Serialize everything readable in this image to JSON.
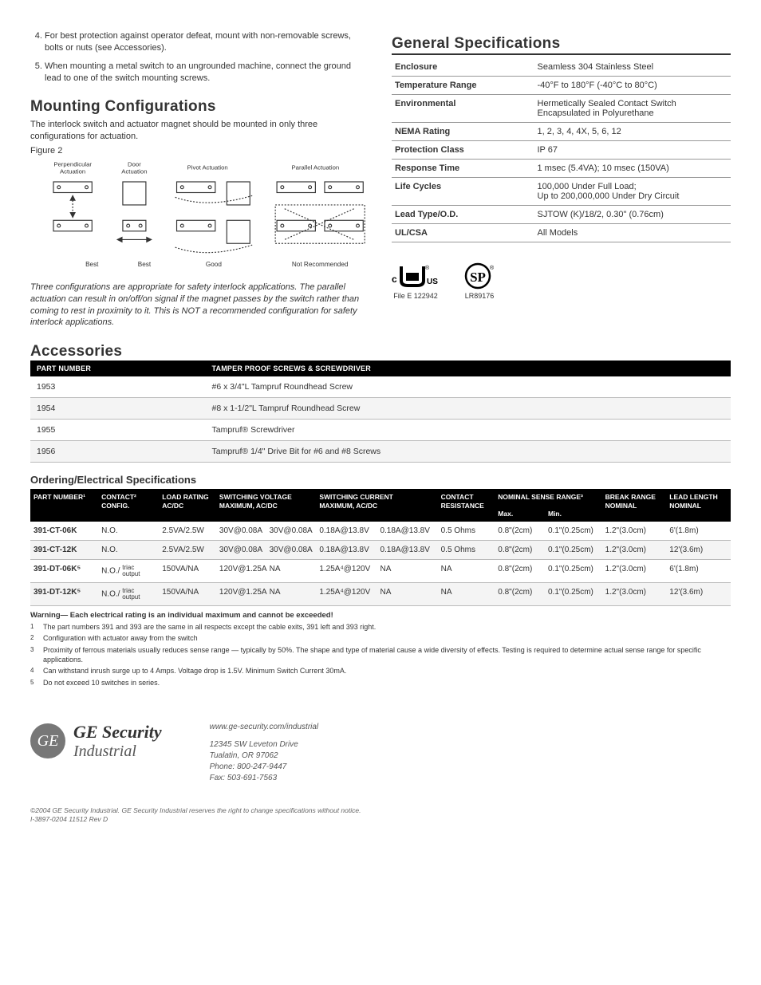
{
  "notes": {
    "n4": "For best protection against operator defeat, mount with non-removable screws, bolts or nuts (see Accessories).",
    "n5": "When mounting a metal switch to an ungrounded machine, connect the ground lead to one of the switch mounting screws."
  },
  "mounting": {
    "title": "Mounting Configurations",
    "intro": "The interlock switch and actuator magnet should be mounted in only three configurations for actuation.",
    "figcap": "Figure 2",
    "labels": {
      "perp": "Perpendicular\nActuation",
      "door": "Door\nActuation",
      "pivot": "Pivot Actuation",
      "parallel": "Parallel Actuation",
      "best": "Best",
      "good": "Good",
      "notrec": "Not Recommended"
    },
    "note": "Three configurations are appropriate for safety interlock applications. The parallel actuation can result in on/off/on signal if the magnet passes by the switch rather than coming to rest in proximity to it. This is NOT a recommended configuration for safety interlock applications."
  },
  "genspec": {
    "title": "General Specifications",
    "rows": [
      {
        "k": "Enclosure",
        "v": "Seamless 304 Stainless Steel"
      },
      {
        "k": "Temperature Range",
        "v": "-40°F to 180°F (-40°C to 80°C)"
      },
      {
        "k": "Environmental",
        "v": "Hermetically Sealed Contact Switch\nEncapsulated in Polyurethane"
      },
      {
        "k": "NEMA Rating",
        "v": "1, 2, 3, 4, 4X, 5, 6, 12"
      },
      {
        "k": "Protection Class",
        "v": "IP 67"
      },
      {
        "k": "Response Time",
        "v": "1 msec (5.4VA); 10 msec (150VA)"
      },
      {
        "k": "Life Cycles",
        "v": "100,000 Under Full Load;\nUp to 200,000,000 Under Dry Circuit"
      },
      {
        "k": "Lead Type/O.D.",
        "v": "SJTOW (K)/18/2, 0.30\" (0.76cm)"
      },
      {
        "k": "UL/CSA",
        "v": "All Models"
      }
    ],
    "cert1_caption": "File E 122942",
    "cert2_caption": "LR89176"
  },
  "accessories": {
    "title": "Accessories",
    "head_pn": "PART NUMBER",
    "head_desc": "TAMPER PROOF SCREWS & SCREWDRIVER",
    "rows": [
      {
        "pn": "1953",
        "desc": "#6 x 3/4\"L Tampruf Roundhead Screw"
      },
      {
        "pn": "1954",
        "desc": "#8 x 1-1/2\"L Tampruf Roundhead Screw"
      },
      {
        "pn": "1955",
        "desc": "Tampruf® Screwdriver"
      },
      {
        "pn": "1956",
        "desc": "Tampruf® 1/4\" Drive Bit for #6 and #8 Screws"
      }
    ]
  },
  "ordering": {
    "title": "Ordering/Electrical Specifications",
    "headers": {
      "pn": "PART NUMBER¹",
      "cfg": "CONTACT²\nCONFIG.",
      "load": "LOAD RATING\nAC/DC",
      "sv": "SWITCHING VOLTAGE\nMAXIMUM, AC/DC",
      "sc": "SWITCHING CURRENT\nMAXIMUM, AC/DC",
      "cr": "CONTACT\nRESISTANCE",
      "nsr": "NOMINAL SENSE RANGE³",
      "max": "Max.",
      "min": "Min.",
      "br": "BREAK RANGE\nNOMINAL",
      "ll": "LEAD LENGTH\nNOMINAL"
    },
    "rows": [
      {
        "pn": "391-CT-06K",
        "cfg": "N.O.",
        "load": "2.5VA/2.5W",
        "sv1": "30V@0.08A",
        "sv2": "30V@0.08A",
        "sc1": "0.18A@13.8V",
        "sc2": "0.18A@13.8V",
        "cr": "0.5 Ohms",
        "max": "0.8\"(2cm)",
        "min": "0.1\"(0.25cm)",
        "br": "1.2\"(3.0cm)",
        "ll": "6'(1.8m)"
      },
      {
        "pn": "391-CT-12K",
        "cfg": "N.O.",
        "load": "2.5VA/2.5W",
        "sv1": "30V@0.08A",
        "sv2": "30V@0.08A",
        "sc1": "0.18A@13.8V",
        "sc2": "0.18A@13.8V",
        "cr": "0.5 Ohms",
        "max": "0.8\"(2cm)",
        "min": "0.1\"(0.25cm)",
        "br": "1.2\"(3.0cm)",
        "ll": "12'(3.6m)"
      },
      {
        "pn": "391-DT-06K⁵",
        "cfg": "N.O./",
        "cfg2": "triac\noutput",
        "load": "150VA/NA",
        "sv1": "120V@1.25A",
        "sv2": "NA",
        "sc1": "1.25A⁴@120V",
        "sc2": "NA",
        "cr": "NA",
        "max": "0.8\"(2cm)",
        "min": "0.1\"(0.25cm)",
        "br": "1.2\"(3.0cm)",
        "ll": "6'(1.8m)"
      },
      {
        "pn": "391-DT-12K⁵",
        "cfg": "N.O./",
        "cfg2": "triac\noutput",
        "load": "150VA/NA",
        "sv1": "120V@1.25A",
        "sv2": "NA",
        "sc1": "1.25A⁴@120V",
        "sc2": "NA",
        "cr": "NA",
        "max": "0.8\"(2cm)",
        "min": "0.1\"(0.25cm)",
        "br": "1.2\"(3.0cm)",
        "ll": "12'(3.6m)"
      }
    ],
    "warning_label": "Warning—",
    "warning_text": "Each electrical rating is an individual maximum and cannot be exceeded!",
    "footnotes": [
      "The part numbers 391 and 393 are the same in all respects except the cable exits, 391 left and 393 right.",
      "Configuration with actuator away from the switch",
      "Proximity of ferrous materials usually reduces sense range — typically by 50%. The shape and type of material cause a wide diversity of effects. Testing is required to determine actual sense range for specific applications.",
      "Can withstand inrush surge up to 4 Amps. Voltage drop is 1.5V. Minimum Switch Current 30mA.",
      "Do not exceed 10 switches in series."
    ]
  },
  "footer": {
    "brand1": "GE Security",
    "brand2": "Industrial",
    "url": "www.ge-security.com/industrial",
    "addr1": "12345 SW Leveton Drive",
    "addr2": "Tualatin, OR 97062",
    "phone": "Phone: 800-247-9447",
    "fax": "Fax: 503-691-7563",
    "fine1": "©2004 GE Security Industrial. GE Security Industrial reserves the right to change specifications without notice.",
    "fine2": "I-3897-0204 11512 Rev  D"
  }
}
